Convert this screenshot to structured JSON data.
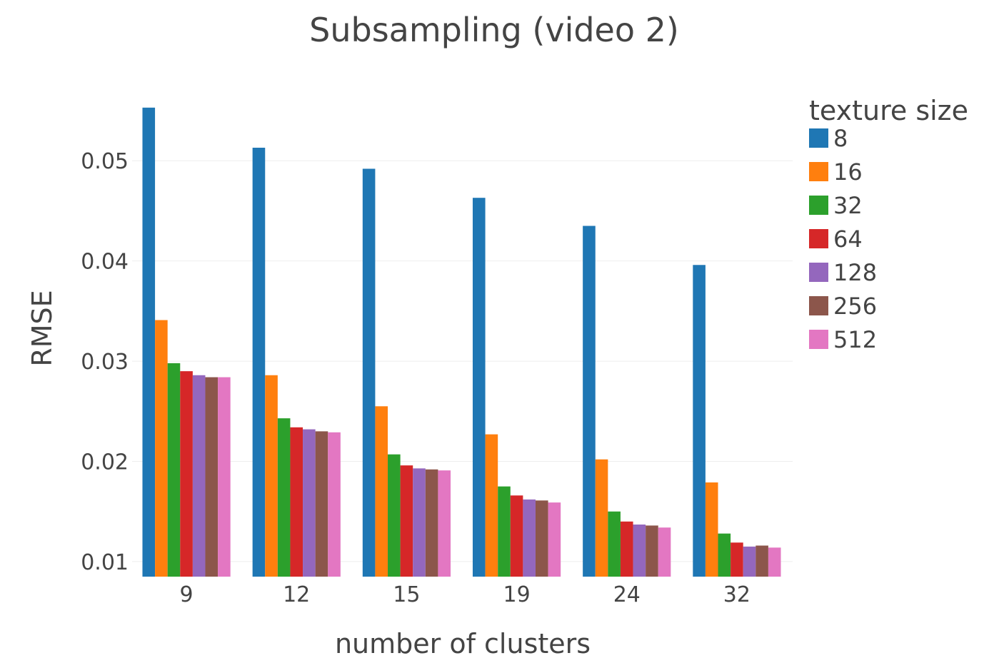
{
  "chart_data": {
    "type": "bar",
    "title": "Subsampling (video 2)",
    "xlabel": "number of clusters",
    "ylabel": "RMSE",
    "categories": [
      "9",
      "12",
      "15",
      "19",
      "24",
      "32"
    ],
    "ylim": [
      0.0085,
      0.0555
    ],
    "yticks": [
      0.01,
      0.02,
      0.03,
      0.04,
      0.05
    ],
    "ytick_labels": [
      "0.01",
      "0.02",
      "0.03",
      "0.04",
      "0.05"
    ],
    "grid": true,
    "legend_title": "texture size",
    "legend_position": "right",
    "series": [
      {
        "name": "8",
        "color": "#1f77b4",
        "values": [
          0.0553,
          0.0513,
          0.0492,
          0.0463,
          0.0435,
          0.0396
        ]
      },
      {
        "name": "16",
        "color": "#ff7f0e",
        "values": [
          0.0341,
          0.0286,
          0.0255,
          0.0227,
          0.0202,
          0.0179
        ]
      },
      {
        "name": "32",
        "color": "#2ca02c",
        "values": [
          0.0298,
          0.0243,
          0.0207,
          0.0175,
          0.015,
          0.0128
        ]
      },
      {
        "name": "64",
        "color": "#d62728",
        "values": [
          0.029,
          0.0234,
          0.0196,
          0.0166,
          0.014,
          0.0119
        ]
      },
      {
        "name": "128",
        "color": "#9467bd",
        "values": [
          0.0286,
          0.0232,
          0.0193,
          0.0162,
          0.0137,
          0.0115
        ]
      },
      {
        "name": "256",
        "color": "#8c564b",
        "values": [
          0.0284,
          0.023,
          0.0192,
          0.0161,
          0.0136,
          0.0116
        ]
      },
      {
        "name": "512",
        "color": "#e377c2",
        "values": [
          0.0284,
          0.0229,
          0.0191,
          0.0159,
          0.0134,
          0.0114
        ]
      }
    ]
  }
}
